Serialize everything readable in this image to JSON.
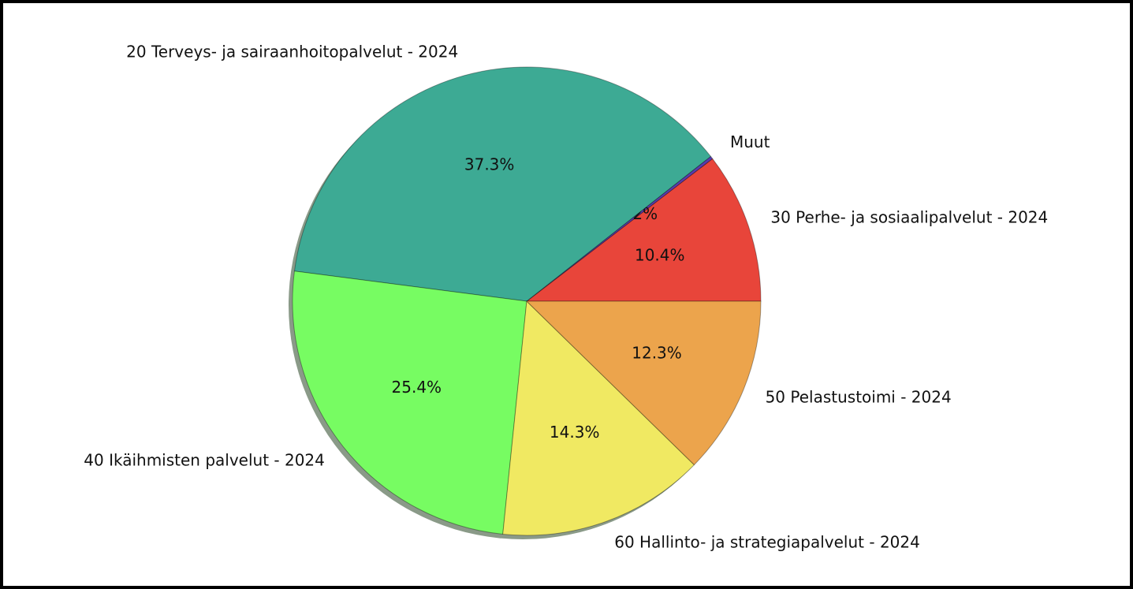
{
  "chart_data": {
    "type": "pie",
    "categories": [
      "30 Perhe- ja sosiaalipalvelut - 2024",
      "Muut",
      "20 Terveys- ja sairaanhoitopalvelut - 2024",
      "40 Ikäihmisten palvelut - 2024",
      "60 Hallinto- ja strategiapalvelut - 2024",
      "50 Pelastustoimi - 2024"
    ],
    "values": [
      10.4,
      0.2,
      37.3,
      25.4,
      14.3,
      12.3
    ],
    "value_labels": [
      "10.4%",
      "0.2%",
      "37.3%",
      "25.4%",
      "14.3%",
      "12.3%"
    ],
    "colors": [
      "#e8453a",
      "#5a3cb0",
      "#3daa94",
      "#77fc62",
      "#f0e962",
      "#eca44c"
    ],
    "shadow": true
  }
}
